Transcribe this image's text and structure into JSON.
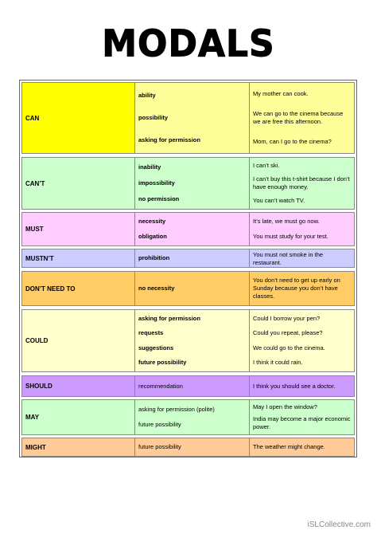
{
  "header": {
    "title": "MODALS"
  },
  "table": {
    "rows": [
      {
        "label": "CAN",
        "items": [
          {
            "use": "ability",
            "example": "My mother can cook."
          },
          {
            "use": "possibility",
            "example": "We can go to the cinema because we are free this afternoon."
          },
          {
            "use": "asking for permission",
            "example": "Mom, can I go to the cinema?"
          }
        ]
      },
      {
        "label": "CAN’T",
        "items": [
          {
            "use": "inability",
            "example": "I can’t ski."
          },
          {
            "use": "impossibility",
            "example": "I can’t buy this t-shirt because I don’t have enough money."
          },
          {
            "use": "no permission",
            "example": "You can’t watch TV."
          }
        ]
      },
      {
        "label": "MUST",
        "items": [
          {
            "use": "necessity",
            "example": "It’s late, we must go now."
          },
          {
            "use": "obligation",
            "example": "You must study for your test."
          }
        ]
      },
      {
        "label": "MUSTN’T",
        "items": [
          {
            "use": "prohibition",
            "example": "You must not smoke in the restaurant."
          }
        ]
      },
      {
        "label": "DON’T NEED TO",
        "items": [
          {
            "use": "no necessity",
            "example": "You don’t need to get up early on Sunday because you don’t have classes."
          }
        ]
      },
      {
        "label": "COULD",
        "items": [
          {
            "use": "asking for permission",
            "example": "Could I borrow your pen?"
          },
          {
            "use": "requests",
            "example": "Could you repeat, please?"
          },
          {
            "use": "suggestions",
            "example": "We could go to the cinema."
          },
          {
            "use": "future possibility",
            "example": "I think it could rain."
          }
        ]
      },
      {
        "label": "SHOULD",
        "items": [
          {
            "use": "recommendation",
            "example": "I think you should see a doctor."
          }
        ]
      },
      {
        "label": "MAY",
        "items": [
          {
            "use": "asking for permission (polite)",
            "example": "May I open the window?"
          },
          {
            "use": "future possibility",
            "example": "India may become a major economic power."
          }
        ]
      },
      {
        "label": "MIGHT",
        "items": [
          {
            "use": "future possibility",
            "example": "The weather might change."
          }
        ]
      }
    ]
  },
  "footer": {
    "credit": "iSLCollective.com"
  }
}
